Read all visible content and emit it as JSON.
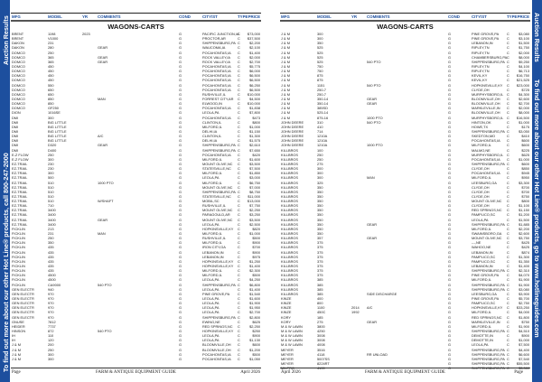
{
  "sidebar_left": {
    "title": "Auction Results",
    "promo": "To find out more about our other Hot Line® products, call 800-247-2000"
  },
  "sidebar_right": {
    "title": "Auction Results",
    "promo": "To find out more about our other Hot Line® products, go to www.hotlineguides.com"
  },
  "colors": {
    "accent": "#1d4f9e"
  },
  "columns": [
    "MFG",
    "MODEL",
    "YR",
    "COMMENTS",
    "COND",
    "CITY/ST",
    "TYPE",
    "PRICE"
  ],
  "section_title": "WAGONS-CARTS",
  "footer": {
    "page": "Page",
    "guide": "FARM & ANTIQUE EQUIPMENT GUIDE",
    "date": "April 2026"
  },
  "left_rows": [
    [
      "BRENT",
      "1198",
      "2023",
      "",
      "G",
      "PACIFIC JUNCTION,IA",
      "C",
      "$73,000"
    ],
    [
      "BRENT",
      "V1000",
      "",
      "",
      "G",
      "PROCTOR,AR",
      "C",
      "$37,500"
    ],
    [
      "DAKON",
      "231",
      "",
      "",
      "G",
      "SHIPPENSBURG,PA",
      "C",
      "$2,200"
    ],
    [
      "DAKON",
      "280",
      "",
      "GEAR",
      "G",
      "WAUCOMA,IA",
      "C",
      "$2,100"
    ],
    [
      "DOMCO",
      "250",
      "",
      "",
      "G",
      "POCAHONTAS,IA",
      "C",
      "$1,400"
    ],
    [
      "DOMCO",
      "365",
      "",
      "GEAR",
      "G",
      "ROCK VALLEY,IA",
      "C",
      "$2,000"
    ],
    [
      "DOMCO",
      "365",
      "",
      "GEAR",
      "G",
      "ROCK VALLEY,IA",
      "C",
      "$2,700"
    ],
    [
      "DOMCO",
      "450",
      "",
      "",
      "G",
      "POCAHONTAS,IA",
      "C",
      "$5,775"
    ],
    [
      "DOMCO",
      "450",
      "",
      "",
      "G",
      "POCAHONTAS,IA",
      "C",
      "$6,000"
    ],
    [
      "DOMCO",
      "450",
      "",
      "",
      "G",
      "POCAHONTAS,IA",
      "C",
      "$6,500"
    ],
    [
      "DOMCO",
      "450",
      "",
      "",
      "G",
      "POCAHONTAS,IA",
      "C",
      "$6,500"
    ],
    [
      "DOMCO",
      "550",
      "",
      "",
      "G",
      "POCAHONTAS,IA",
      "C",
      "$6,250"
    ],
    [
      "DOMCO",
      "650",
      "",
      "",
      "G",
      "POCAHONTAS,IA",
      "C",
      "$6,500"
    ],
    [
      "DOMCO",
      "650",
      "",
      "",
      "G",
      "RUSHVILLE,IL",
      "C",
      "$10,000"
    ],
    [
      "DOMCO",
      "850",
      "",
      "MAN",
      "G",
      "FORREST CITY,AR",
      "C",
      "$4,500"
    ],
    [
      "DOMCO",
      "850",
      "",
      "",
      "G",
      "ELWOOD,IN",
      "C",
      "$10,000"
    ],
    [
      "DOMCO",
      "GF250",
      "",
      "",
      "G",
      "POCAHONTAS,IA",
      "C",
      "$1,838"
    ],
    [
      "DION",
      "1016SE",
      "",
      "",
      "G",
      "LEOLA,PA",
      "C",
      "$7,800"
    ],
    [
      "DMI",
      "300",
      "",
      "",
      "G",
      "POCAHONTAS,IA",
      "C",
      "$473"
    ],
    [
      "DMI",
      "BIG LITTLE",
      "",
      "",
      "G",
      "CLINTON,IL",
      "C",
      "$800"
    ],
    [
      "DMI",
      "BIG LITTLE",
      "",
      "",
      "G",
      "MILFORD,IL",
      "C",
      "$1,000"
    ],
    [
      "DMI",
      "BIG LITTLE",
      "",
      "",
      "G",
      "DELHI,IA",
      "C",
      "$1,150"
    ],
    [
      "DMI",
      "BIG LITTLE",
      "",
      "A/C",
      "G",
      "CLINTON,IL",
      "C",
      "$1,300"
    ],
    [
      "DMI",
      "BIG LITTLE",
      "",
      "",
      "G",
      "DELHI,IA",
      "C",
      "$1,575"
    ],
    [
      "DMI",
      "D320",
      "",
      "GEAR",
      "G",
      "SHIPPENSBURG,PA",
      "C",
      "$2,610"
    ],
    [
      "DMI",
      "D400",
      "",
      "",
      "G",
      "SHIPPENSBURG,PA",
      "C",
      "$7,650"
    ],
    [
      "E-Z FLOW",
      "250",
      "",
      "",
      "G",
      "POCAHONTAS,IA",
      "C",
      "$420"
    ],
    [
      "E-Z FLOW",
      "300",
      "",
      "",
      "G",
      "MILFORD,IL",
      "C",
      "$1,600"
    ],
    [
      "EZ-TRAIL",
      "230",
      "",
      "",
      "G",
      "MOUNT OLIVE,NC",
      "C",
      "$3,500"
    ],
    [
      "EZ-TRAIL",
      "230",
      "",
      "",
      "G",
      "STATESVILLE,NC",
      "C",
      "$7,500"
    ],
    [
      "EZ-TRAIL",
      "300",
      "",
      "",
      "G",
      "MILFORD,IL",
      "C",
      "$1,850"
    ],
    [
      "EZ-TRAIL",
      "500",
      "",
      "",
      "G",
      "LEOLA,PA",
      "C",
      "$3,000"
    ],
    [
      "EZ-TRAIL",
      "510",
      "",
      "1000 PTO",
      "G",
      "MILFORD,IL",
      "C",
      "$6,750"
    ],
    [
      "EZ-TRAIL",
      "510",
      "",
      "",
      "G",
      "MOUNT OLIVE,NC",
      "C",
      "$7,000"
    ],
    [
      "EZ-TRAIL",
      "510",
      "",
      "",
      "G",
      "SHIPPENSBURG,PA",
      "C",
      "$8,750"
    ],
    [
      "EZ-TRAIL",
      "510",
      "",
      "",
      "G",
      "STATESVILLE,NC",
      "C",
      "$11,000"
    ],
    [
      "EZ-TRAIL",
      "510",
      "",
      "W/SHAFT",
      "G",
      "MOBIL,SC",
      "C",
      "$13,000"
    ],
    [
      "EZ-TRAIL",
      "710",
      "",
      "",
      "G",
      "RUSHVILLE,IL",
      "C",
      "$7,750"
    ],
    [
      "EZ-TRAIL",
      "3400",
      "",
      "",
      "G",
      "MOUNT OLIVE,NC",
      "C",
      "$2,250"
    ],
    [
      "EZ-TRAIL",
      "3400",
      "",
      "",
      "G",
      "PARAGOULD,AR",
      "C",
      "$3,250"
    ],
    [
      "EZ-TRAIL",
      "3400",
      "",
      "GEAR",
      "G",
      "MOUNT OLIVE,NC",
      "C",
      "$3,500"
    ],
    [
      "EZ-TRAIL",
      "3400",
      "",
      "",
      "G",
      "LEOLA,PA",
      "C",
      "$2,500"
    ],
    [
      "FICKLIN",
      "213",
      "",
      "",
      "G",
      "HOPKINSVILLE,KY",
      "C",
      "$820"
    ],
    [
      "FICKLIN",
      "231",
      "",
      "MAN",
      "G",
      "MILFORD,IL",
      "C",
      "$1,000"
    ],
    [
      "FICKLIN",
      "250",
      "",
      "",
      "G",
      "RUSHVILLE,IL",
      "C",
      "$500"
    ],
    [
      "FICKLIN",
      "350",
      "",
      "",
      "G",
      "MILFORD,IL",
      "C",
      "$900"
    ],
    [
      "FICKLIN",
      "435",
      "",
      "",
      "G",
      "IRON CITY,GA",
      "C",
      "$700"
    ],
    [
      "FICKLIN",
      "435",
      "",
      "",
      "G",
      "LEBANON,IN",
      "C",
      "$900"
    ],
    [
      "FICKLIN",
      "435",
      "",
      "",
      "G",
      "LEBANON,IN",
      "C",
      "$975"
    ],
    [
      "FICKLIN",
      "435",
      "",
      "",
      "G",
      "HOPKINSVILLE,KY",
      "C",
      "$1,250"
    ],
    [
      "FICKLIN",
      "435",
      "",
      "",
      "G",
      "HOPKINSVILLE,KY",
      "C",
      "$1,400"
    ],
    [
      "FICKLIN",
      "435",
      "",
      "",
      "G",
      "MILFORD,IL",
      "C",
      "$2,300"
    ],
    [
      "FICKLIN",
      "4500",
      "",
      "",
      "G",
      "MILFORD,IL",
      "C",
      "$500"
    ],
    [
      "FICKLIN",
      "4500",
      "",
      "",
      "G",
      "LEOLA,PA",
      "C",
      "$4,250"
    ],
    [
      "FICKLIN",
      "CA9000",
      "",
      "540 PTO",
      "G",
      "SHIPPENSBURG,PA",
      "C",
      "$6,800"
    ],
    [
      "GEN ELECTR",
      "940",
      "",
      "",
      "G",
      "LEOLA,PA",
      "C",
      "$1,400"
    ],
    [
      "GEN ELECTR",
      "970",
      "",
      "",
      "G",
      "PINE GROVE,PA",
      "C",
      "$1,540"
    ],
    [
      "GEN ELECTR",
      "970",
      "",
      "",
      "G",
      "LEOLA,PA",
      "C",
      "$1,600"
    ],
    [
      "GEN ELECTR",
      "970",
      "",
      "",
      "G",
      "LEOLA,PA",
      "C",
      "$1,900"
    ],
    [
      "GEN ELECTR",
      "970",
      "",
      "",
      "G",
      "LEOLA,PA",
      "C",
      "$1,950"
    ],
    [
      "GEN ELECTR",
      "970",
      "",
      "",
      "G",
      "LEOLA,PA",
      "C",
      "$2,700"
    ],
    [
      "GEN ELECTR",
      "970",
      "",
      "",
      "G",
      "SHIPPENSBURG,PA",
      "C",
      "$2,800"
    ],
    [
      "GNUSE",
      "7812",
      "",
      "",
      "G",
      "EWING,NE",
      "C",
      "$625"
    ],
    [
      "HEIDER",
      "7737",
      "",
      "",
      "G",
      "RED SPRINGS,NC",
      "C",
      "$2,250"
    ],
    [
      "HINSON",
      "872",
      "",
      "540 PTO",
      "G",
      "HOPKINSVILLE,KY",
      "C",
      "$250"
    ],
    [
      "IH",
      "110",
      "",
      "",
      "G",
      "LEOLA,PA",
      "C",
      "$900"
    ],
    [
      "IH",
      "120",
      "",
      "",
      "G",
      "LEOLA,PA",
      "C",
      "$1,130"
    ],
    [
      "J & M",
      "200",
      "",
      "",
      "G",
      "BLOOMVILLE,OH",
      "C",
      "$600"
    ],
    [
      "J & M",
      "250",
      "",
      "",
      "G",
      "BLOOMVILLE,OH",
      "C",
      "$1,200"
    ],
    [
      "J & M",
      "300",
      "",
      "",
      "G",
      "POCAHONTAS,IA",
      "C",
      "$500"
    ],
    [
      "J & M",
      "300",
      "",
      "",
      "G",
      "POCAHONTAS,IA",
      "C",
      "$1,050"
    ]
  ],
  "right_rows": [
    [
      "J & M",
      "300",
      "",
      "",
      "G",
      "PINE GROVE,PA",
      "C",
      "$3,080"
    ],
    [
      "J & M",
      "300",
      "",
      "",
      "G",
      "PINE GROVE,PA",
      "C",
      "$3,100"
    ],
    [
      "J & M",
      "350",
      "",
      "",
      "G",
      "LEBANON,IN",
      "C",
      "$1,500"
    ],
    [
      "J & M",
      "525",
      "",
      "",
      "G",
      "RIPLEY,TN",
      "C",
      "$1,750"
    ],
    [
      "J & M",
      "525",
      "",
      "",
      "G",
      "RIPLEY,TN",
      "C",
      "$2,000"
    ],
    [
      "J & M",
      "525",
      "",
      "",
      "G",
      "CHAMBERSBURG,PA",
      "C",
      "$8,000"
    ],
    [
      "J & M",
      "525",
      "",
      "540 PTO",
      "G",
      "SHIPPENSBURG,PA",
      "C",
      "$9,250"
    ],
    [
      "J & M",
      "750",
      "",
      "",
      "G",
      "RIPLEY,TN",
      "C",
      "$4,100"
    ],
    [
      "J & M",
      "750",
      "",
      "",
      "G",
      "RIPLEY,TN",
      "C",
      "$6,713"
    ],
    [
      "J & M",
      "875",
      "",
      "",
      "G",
      "KEVIL,KY",
      "C",
      "$16,750"
    ],
    [
      "J & M",
      "875",
      "",
      "",
      "G",
      "KEVIL,KY",
      "C",
      "$21,525"
    ],
    [
      "J & M",
      "1151",
      "",
      "540 PTO",
      "G",
      "HOPKINSVILLE,KY",
      "C",
      "$23,000"
    ],
    [
      "J & M",
      "250-7",
      "",
      "",
      "G",
      "CLYDE,OH",
      "C",
      "$725"
    ],
    [
      "J & M",
      "250-7",
      "",
      "",
      "G",
      "MURPHYSBORO,IL",
      "C",
      "$4,300"
    ],
    [
      "J & M",
      "350-14",
      "",
      "GEAR",
      "G",
      "BLOOMVILLE,OH",
      "C",
      "$2,600"
    ],
    [
      "J & M",
      "350-14",
      "",
      "GEAR",
      "G",
      "BLOOMVILLE,OH",
      "C",
      "$2,700"
    ],
    [
      "J & M",
      "385SD",
      "",
      "",
      "G",
      "MARKLEVILLE,IN",
      "C",
      "$2,000"
    ],
    [
      "J & M",
      "525-14",
      "",
      "",
      "G",
      "BLOOMVILLE,OH",
      "C",
      "$8,000"
    ],
    [
      "J & M",
      "875-16",
      "",
      "1000 PTO",
      "G",
      "MURPHYSBORO,IL",
      "C",
      "$16,500"
    ],
    [
      "JOHN DEERE",
      "310",
      "",
      "540 PTO",
      "G",
      "HINTON,OK",
      "C",
      "$1,000"
    ],
    [
      "JOHN DEERE",
      "410",
      "",
      "",
      "G",
      "HOWE,TX",
      "C",
      "$175"
    ],
    [
      "JOHN DEERE",
      "714",
      "",
      "",
      "G",
      "SHIPPENSBURG,PA",
      "C",
      "$3,050"
    ],
    [
      "JOHN DEERE",
      "1210A",
      "",
      "",
      "G",
      "SKEDTON,MO",
      "C",
      "$410"
    ],
    [
      "JOHN DEERE",
      "1210A",
      "",
      "",
      "G",
      "POCAHONTAS,IA",
      "C",
      "$600"
    ],
    [
      "JOHN DEERE",
      "1210A",
      "",
      "1000 PTO",
      "G",
      "MILFORD,IL",
      "C",
      "$600"
    ],
    [
      "KILLBROS",
      "100",
      "",
      "",
      "G",
      "MALMO,NE",
      "C",
      "$225"
    ],
    [
      "KILLBROS",
      "250",
      "",
      "",
      "G",
      "MURPHYSBORO,IL",
      "C",
      "$625"
    ],
    [
      "KILLBROS",
      "250",
      "",
      "",
      "G",
      "POCAHONTAS,IA",
      "C",
      "$1,000"
    ],
    [
      "KILLBROS",
      "275",
      "",
      "",
      "G",
      "SHIPPENSBURG,PA",
      "C",
      "$600"
    ],
    [
      "KILLBROS",
      "300",
      "",
      "",
      "G",
      "CLYDE,OH",
      "C",
      "$850"
    ],
    [
      "KILLBROS",
      "300",
      "",
      "",
      "G",
      "POCAHONTAS,IA",
      "C",
      "$945"
    ],
    [
      "KILLBROS",
      "300",
      "",
      "MAN",
      "G",
      "MILFORD,IL",
      "C",
      "$950"
    ],
    [
      "KILLBROS",
      "325",
      "",
      "",
      "G",
      "LEESBURG,GA",
      "C",
      "$3,300"
    ],
    [
      "KILLBROS",
      "350",
      "",
      "",
      "G",
      "CLYDE,OH",
      "C",
      "$700"
    ],
    [
      "KILLBROS",
      "350",
      "",
      "",
      "G",
      "CLYDE,OH",
      "C",
      "$700"
    ],
    [
      "KILLBROS",
      "350",
      "",
      "",
      "G",
      "CLYDE,OH",
      "C",
      "$750"
    ],
    [
      "KILLBROS",
      "350",
      "",
      "",
      "G",
      "MOUNT OLIVE,NC",
      "C",
      "$800"
    ],
    [
      "KILLBROS",
      "350",
      "",
      "",
      "G",
      "CLYDE,OH",
      "C",
      "$1,100"
    ],
    [
      "KILLBROS",
      "350",
      "",
      "",
      "G",
      "RED SPRINGS,NC",
      "C",
      "$1,150"
    ],
    [
      "KILLBROS",
      "350",
      "",
      "",
      "G",
      "PAMPLICO,SC",
      "C",
      "$1,200"
    ],
    [
      "KILLBROS",
      "350",
      "",
      "",
      "G",
      "LEOLA,PA",
      "C",
      "$1,500"
    ],
    [
      "KILLBROS",
      "350",
      "",
      "GEAR",
      "G",
      "SHIPPENSBURG,PA",
      "C",
      "$1,885"
    ],
    [
      "KILLBROS",
      "350",
      "",
      "",
      "G",
      "MILFORD,IL",
      "C",
      "$2,200"
    ],
    [
      "KILLBROS",
      "350",
      "",
      "",
      "G",
      "SWAINSBORO,GA",
      "C",
      "$2,600"
    ],
    [
      "KILLBROS",
      "357",
      "",
      "GEAR",
      "G",
      "MOUNT OLIVE,NC",
      "C",
      "$3,750"
    ],
    [
      "KILLBROS",
      "375",
      "",
      "",
      "G",
      "---,NE",
      "C",
      "$425"
    ],
    [
      "KILLBROS",
      "375",
      "",
      "",
      "G",
      "WAHOO,NE",
      "C",
      "$425"
    ],
    [
      "KILLBROS",
      "375",
      "",
      "",
      "G",
      "LEBANON,IN",
      "C",
      "$874"
    ],
    [
      "KILLBROS",
      "375",
      "",
      "",
      "G",
      "PAMPLICO,SC",
      "C",
      "$1,300"
    ],
    [
      "KILLBROS",
      "375",
      "",
      "",
      "G",
      "PAMPLICO,SC",
      "C",
      "$1,350"
    ],
    [
      "KILLBROS",
      "375",
      "",
      "",
      "G",
      "LEBANON,IN",
      "C",
      "$1,400"
    ],
    [
      "KILLBROS",
      "375",
      "",
      "",
      "G",
      "SHIPPENSBURG,PA",
      "C",
      "$2,310"
    ],
    [
      "KILLBROS",
      "375",
      "",
      "",
      "G",
      "PINE GROVE,PA",
      "C",
      "$4,070"
    ],
    [
      "KILLBROS",
      "385",
      "",
      "",
      "G",
      "MILFORD,IL",
      "C",
      "$1,900"
    ],
    [
      "KILLBROS",
      "385",
      "",
      "",
      "G",
      "SHIPPENSBURG,PA",
      "C",
      "$1,900"
    ],
    [
      "KILLBROS",
      "385",
      "",
      "",
      "G",
      "SHIPPENSBURG,PA",
      "C",
      "$3,080"
    ],
    [
      "KILLBROS",
      "385",
      "",
      "SIDE DISCHARGE",
      "G",
      "LEESBURG,GA",
      "C",
      "$3,900"
    ],
    [
      "KINZE",
      "400",
      "",
      "",
      "G",
      "PINE GROVE,PA",
      "C",
      "$5,700"
    ],
    [
      "KINZE",
      "800",
      "",
      "",
      "G",
      "PAMPLICO,SC",
      "C",
      "$2,750"
    ],
    [
      "KINZE",
      "1100",
      "2014",
      "A/C",
      "G",
      "HOPKINSVILLE,KY",
      "C",
      "$33,250"
    ],
    [
      "KINZE",
      "450C",
      "1992",
      "",
      "G",
      "MILFORD,IL",
      "C",
      "$4,000"
    ],
    [
      "KORY",
      "185",
      "",
      "",
      "G",
      "RED SPRINGS,NC",
      "C",
      "$1,800"
    ],
    [
      "KORY",
      "275",
      "",
      "GEAR",
      "G",
      "MARKLEVILLE,IN",
      "C",
      "$750"
    ],
    [
      "M & W LAWN",
      "3800",
      "",
      "",
      "G",
      "MILFORD,IL",
      "C",
      "$1,900"
    ],
    [
      "M & W LAWN",
      "4250",
      "",
      "",
      "G",
      "SHIPPENSBURG,PA",
      "C",
      "$4,510"
    ],
    [
      "M & W LAWN",
      "3008",
      "",
      "",
      "G",
      "DEMOTTE,IN",
      "C",
      "$900"
    ],
    [
      "M & W LAWN",
      "3008",
      "",
      "",
      "G",
      "DEMOTTE,IN",
      "C",
      "$1,000"
    ],
    [
      "M & W LAWN",
      "4008",
      "",
      "",
      "G",
      "LEOLA,PA",
      "C",
      "$7,500"
    ],
    [
      "MEYER",
      "3516",
      "",
      "",
      "G",
      "SHIPPENSBURG,PA",
      "C",
      "$4,400"
    ],
    [
      "MEYER",
      "4118",
      "",
      "RR UNLOAD",
      "G",
      "SHIPPENSBURG,PA",
      "C",
      "$6,600"
    ],
    [
      "MEYER",
      "5007SS",
      "",
      "",
      "G",
      "SHIPPENSBURG,PA",
      "C",
      "$7,540"
    ],
    [
      "MEYER",
      "8224RT",
      "",
      "",
      "G",
      "SHIPPENSBURG,PA",
      "C",
      "$55,500"
    ],
    [
      "MILPRO",
      "4100",
      "",
      "",
      "G",
      "SHIPPENSBURG,PA",
      "C",
      "$3,080"
    ]
  ]
}
